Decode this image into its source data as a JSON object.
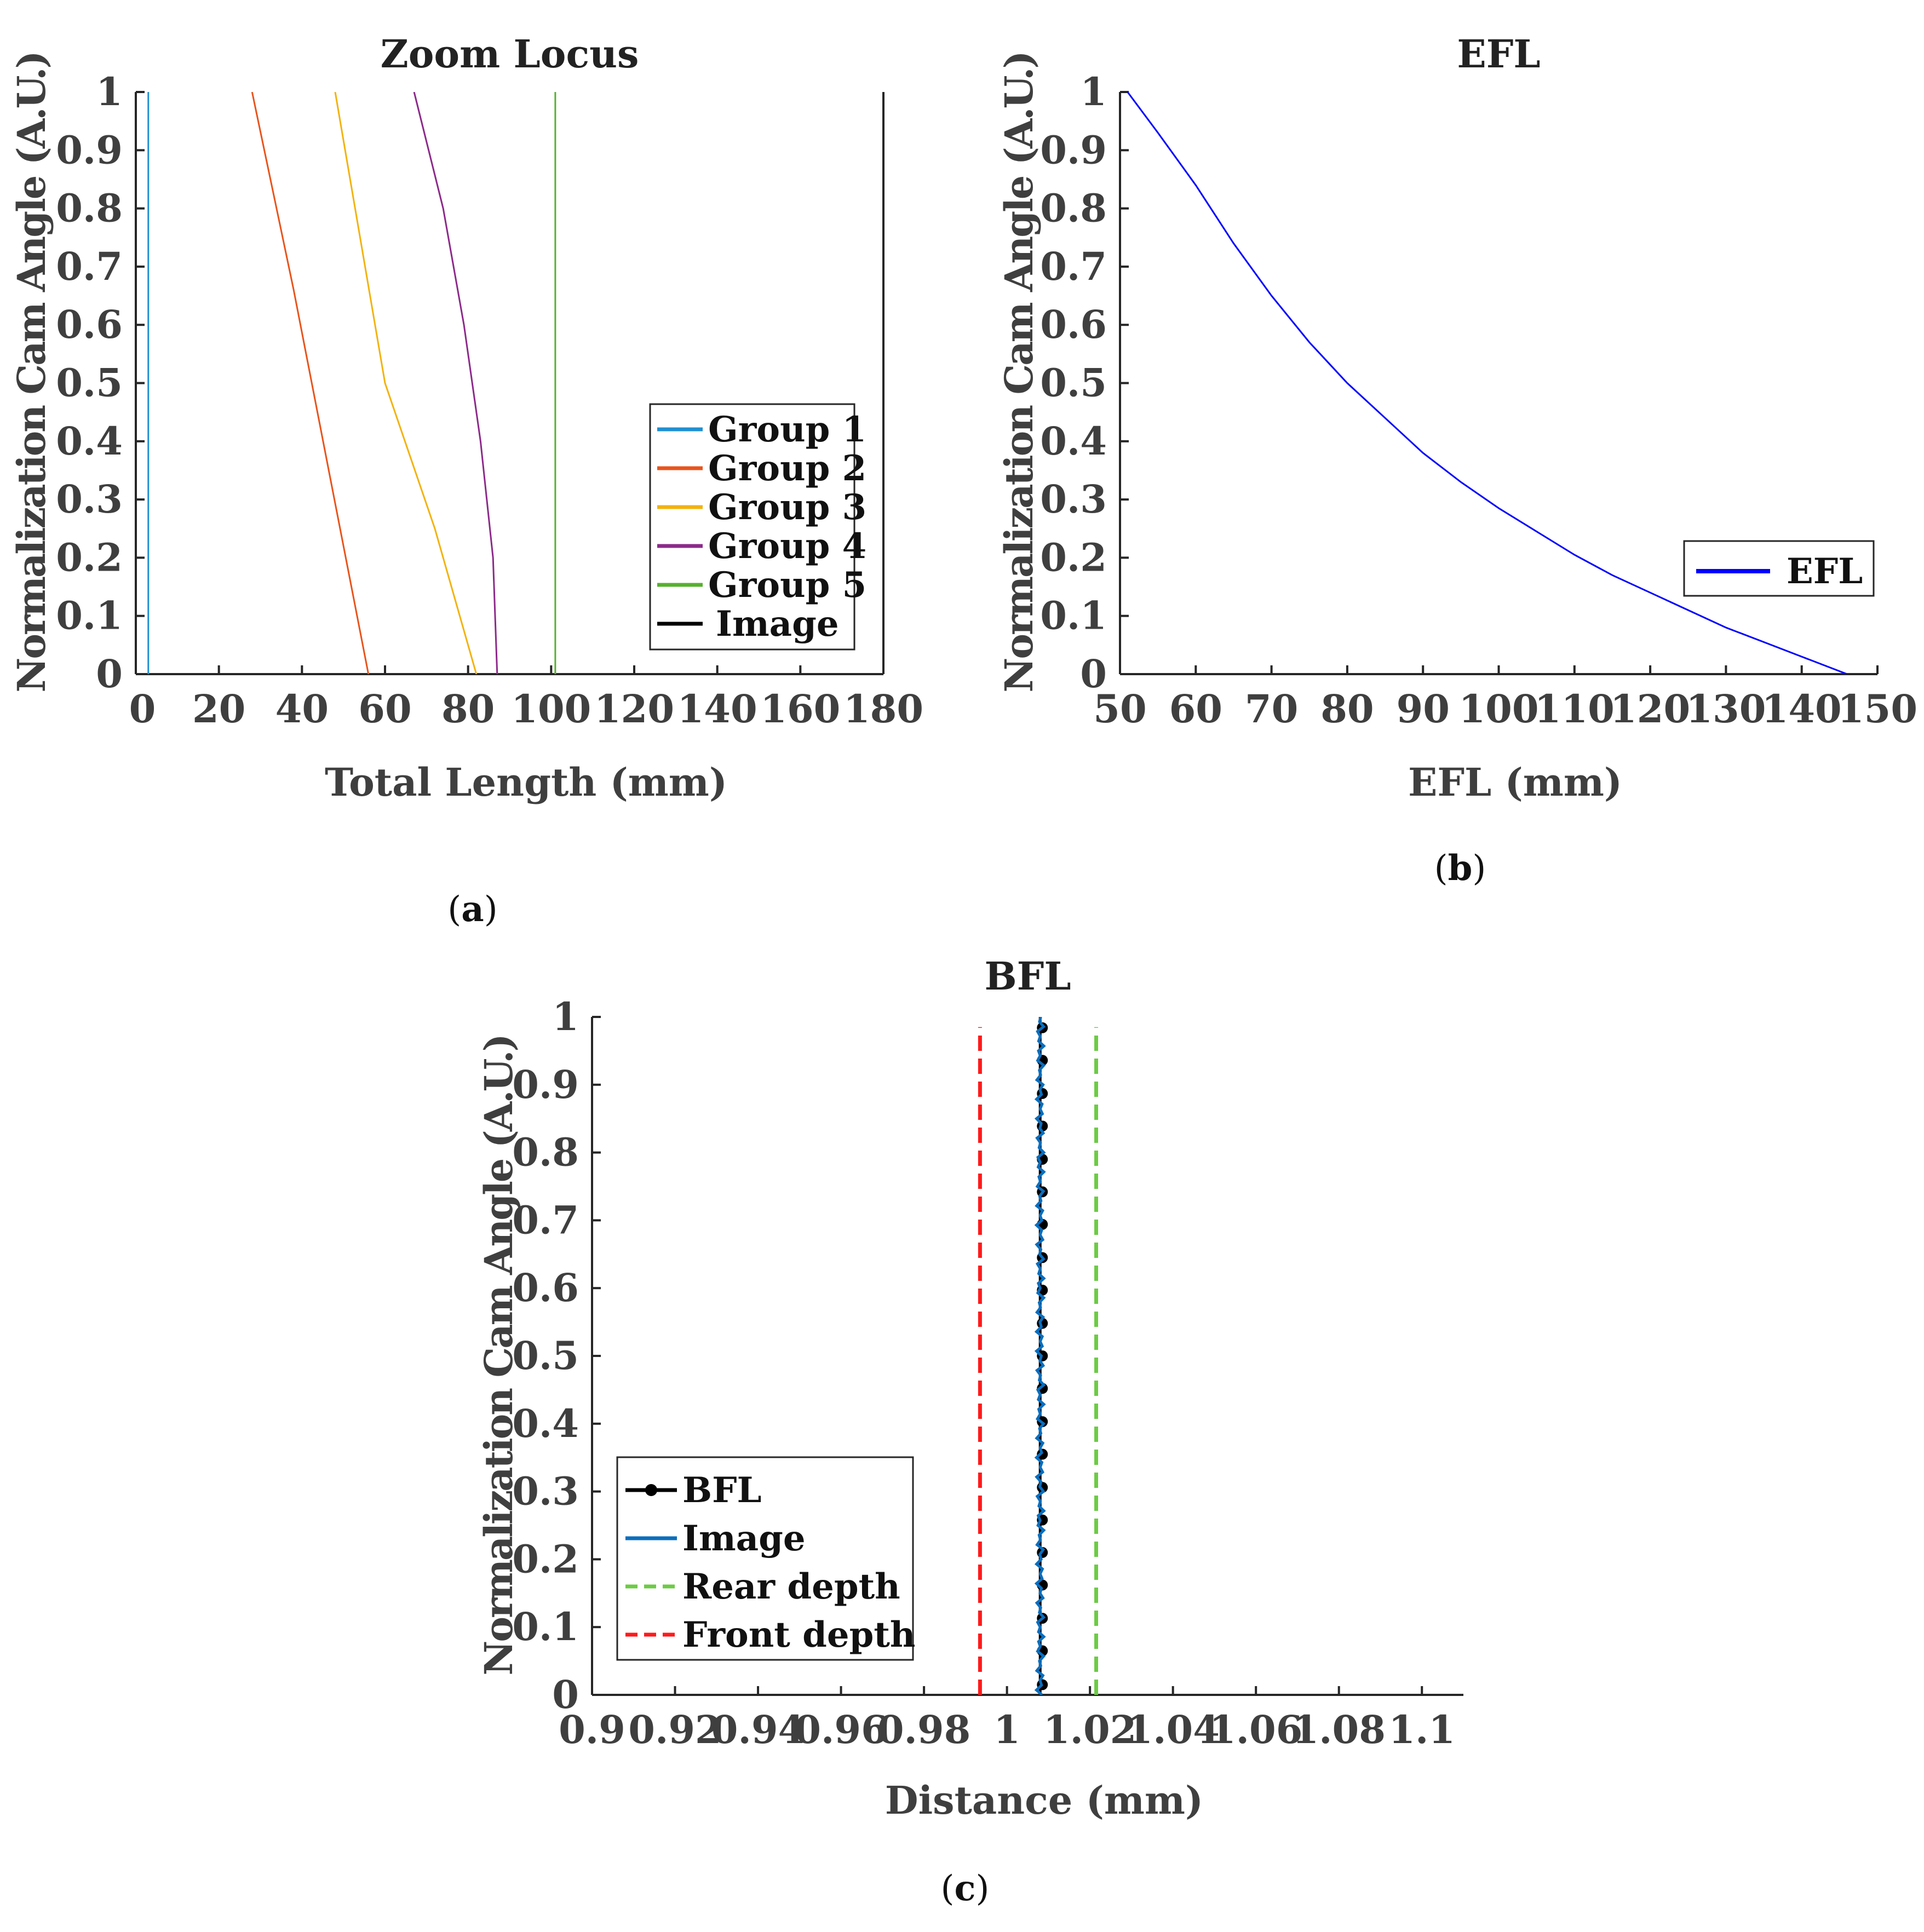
{
  "chart_data": [
    {
      "id": "a",
      "type": "line",
      "title": "Zoom Locus",
      "xlabel": "Total Length (mm)",
      "ylabel": "Normalization Cam Angle (A.U.)",
      "caption": {
        "open": "(",
        "letter": "a",
        "close": ")"
      },
      "xlim": [
        0,
        180
      ],
      "ylim": [
        0,
        1
      ],
      "xticks": [
        "0",
        "20",
        "40",
        "60",
        "80",
        "100",
        "120",
        "140",
        "160",
        "180"
      ],
      "yticks": [
        "0",
        "0.1",
        "0.2",
        "0.3",
        "0.4",
        "0.5",
        "0.6",
        "0.7",
        "0.8",
        "0.9",
        "1"
      ],
      "legend_position": "center-right",
      "series": [
        {
          "name": "Group 1",
          "color": "#1f8fd0",
          "x": [
            3,
            3
          ],
          "y": [
            0,
            1
          ]
        },
        {
          "name": "Group 2",
          "color": "#e8541c",
          "x": [
            56,
            47,
            38,
            28
          ],
          "y": [
            0,
            0.33,
            0.66,
            1
          ]
        },
        {
          "name": "Group 3",
          "color": "#f2b30f",
          "x": [
            82,
            72,
            60,
            54,
            48
          ],
          "y": [
            0,
            0.25,
            0.5,
            0.75,
            1
          ]
        },
        {
          "name": "Group 4",
          "color": "#8c2a8a",
          "x": [
            87,
            86,
            83,
            79,
            74,
            67
          ],
          "y": [
            0,
            0.2,
            0.4,
            0.6,
            0.8,
            1
          ]
        },
        {
          "name": "Group 5",
          "color": "#56b02d",
          "x": [
            101,
            101
          ],
          "y": [
            0,
            1
          ]
        },
        {
          "name": "Image",
          "color": "#000000",
          "x": [],
          "y": []
        }
      ]
    },
    {
      "id": "b",
      "type": "line",
      "title": "EFL",
      "xlabel": "EFL (mm)",
      "ylabel": "Normalization Cam Angle (A.U.)",
      "caption": {
        "open": "(",
        "letter": "b",
        "close": ")"
      },
      "xlim": [
        50,
        150
      ],
      "ylim": [
        0,
        1
      ],
      "xticks": [
        "50",
        "60",
        "70",
        "80",
        "90",
        "100",
        "110",
        "120",
        "130",
        "140",
        "150"
      ],
      "yticks": [
        "0",
        "0.1",
        "0.2",
        "0.3",
        "0.4",
        "0.5",
        "0.6",
        "0.7",
        "0.8",
        "0.9",
        "1"
      ],
      "legend_position": "lower-right",
      "series": [
        {
          "name": "EFL",
          "color": "#0000ff",
          "x": [
            51,
            55,
            60,
            65,
            70,
            75,
            80,
            85,
            90,
            95,
            100,
            105,
            110,
            115,
            120,
            125,
            130,
            135,
            140,
            146
          ],
          "y": [
            1.0,
            0.93,
            0.84,
            0.74,
            0.65,
            0.57,
            0.5,
            0.44,
            0.38,
            0.33,
            0.285,
            0.245,
            0.205,
            0.17,
            0.14,
            0.11,
            0.08,
            0.055,
            0.03,
            0.0
          ]
        }
      ]
    },
    {
      "id": "c",
      "type": "line",
      "title": "BFL",
      "xlabel": "Distance (mm)",
      "ylabel": "Normalization Cam Angle (A.U.)",
      "caption": {
        "open": "(",
        "letter": "c",
        "close": ")"
      },
      "xlim": [
        0.9,
        1.11
      ],
      "ylim": [
        0,
        1
      ],
      "xticks": [
        "0.9",
        "0.92",
        "0.94",
        "0.96",
        "0.98",
        "1",
        "1.02",
        "1.04",
        "1.06",
        "1.08",
        "1.1"
      ],
      "yticks": [
        "0",
        "0.1",
        "0.2",
        "0.3",
        "0.4",
        "0.5",
        "0.6",
        "0.7",
        "0.8",
        "0.9",
        "1"
      ],
      "legend_position": "lower-left",
      "series": [
        {
          "name": "BFL",
          "color": "#000000",
          "marker": "circle",
          "x_const": 1.008,
          "y": [
            0.015,
            0.065,
            0.113,
            0.162,
            0.21,
            0.258,
            0.306,
            0.355,
            0.403,
            0.452,
            0.5,
            0.548,
            0.597,
            0.645,
            0.694,
            0.742,
            0.79,
            0.839,
            0.887,
            0.936,
            0.984
          ]
        },
        {
          "name": "Image",
          "color": "#0a6ebd",
          "x_const": 1.008,
          "jitter": 0.0009
        },
        {
          "name": "Rear depth",
          "color": "#6ccb45",
          "dashed": true,
          "x": [
            1.0215,
            1.0215
          ],
          "y": [
            0,
            0.985
          ]
        },
        {
          "name": "Front depth",
          "color": "#ff1a1a",
          "dashed": true,
          "x": [
            0.9935,
            0.9935
          ],
          "y": [
            0,
            0.985
          ]
        }
      ]
    }
  ]
}
